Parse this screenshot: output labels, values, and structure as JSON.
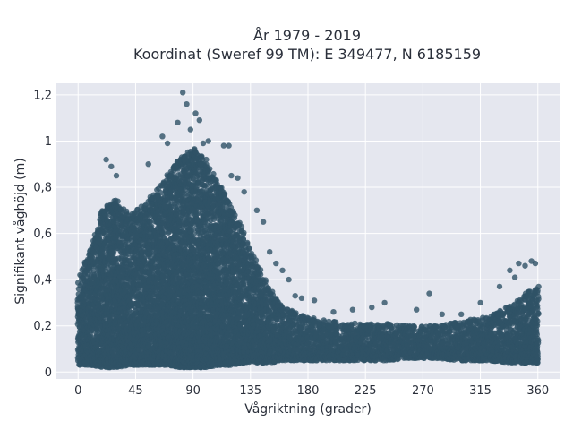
{
  "chart_data": {
    "type": "scatter",
    "title_lines": [
      "År 1979 - 2019",
      "Koordinat (Sweref 99 TM): E 349477, N 6185159"
    ],
    "xlabel": "Vågriktning (grader)",
    "ylabel": "Signifikant våghöjd (m)",
    "xlim": [
      -17,
      377
    ],
    "ylim": [
      -0.03,
      1.25
    ],
    "x_ticks": [
      0,
      45,
      90,
      135,
      180,
      225,
      270,
      315,
      360
    ],
    "x_tick_labels": [
      "0",
      "45",
      "90",
      "135",
      "180",
      "225",
      "270",
      "315",
      "360"
    ],
    "y_ticks": [
      0,
      0.2,
      0.4,
      0.6,
      0.8,
      1.0,
      1.2
    ],
    "y_tick_labels": [
      "0",
      "0,2",
      "0,4",
      "0,6",
      "0,8",
      "1",
      "1,2"
    ],
    "grid": true,
    "colors": {
      "marker": "#2f5266",
      "plot_bg": "#e5e7ef",
      "grid": "#ffffff"
    },
    "envelope": {
      "x": [
        0,
        10,
        20,
        30,
        40,
        50,
        60,
        70,
        80,
        90,
        100,
        110,
        120,
        130,
        140,
        150,
        160,
        170,
        180,
        200,
        220,
        240,
        260,
        280,
        300,
        320,
        340,
        350,
        360
      ],
      "lower": [
        0.03,
        0.03,
        0.02,
        0.02,
        0.03,
        0.03,
        0.03,
        0.03,
        0.02,
        0.02,
        0.02,
        0.03,
        0.03,
        0.04,
        0.04,
        0.04,
        0.05,
        0.05,
        0.05,
        0.05,
        0.05,
        0.05,
        0.06,
        0.06,
        0.05,
        0.05,
        0.04,
        0.04,
        0.04
      ],
      "upper": [
        0.4,
        0.55,
        0.72,
        0.75,
        0.68,
        0.72,
        0.78,
        0.86,
        0.93,
        0.97,
        0.92,
        0.82,
        0.72,
        0.6,
        0.47,
        0.36,
        0.28,
        0.26,
        0.24,
        0.22,
        0.21,
        0.21,
        0.2,
        0.2,
        0.22,
        0.24,
        0.29,
        0.34,
        0.37
      ]
    },
    "outliers": [
      {
        "x": 82,
        "y": 1.21
      },
      {
        "x": 85,
        "y": 1.16
      },
      {
        "x": 92,
        "y": 1.12
      },
      {
        "x": 95,
        "y": 1.09
      },
      {
        "x": 78,
        "y": 1.08
      },
      {
        "x": 88,
        "y": 1.05
      },
      {
        "x": 66,
        "y": 1.02
      },
      {
        "x": 98,
        "y": 0.99
      },
      {
        "x": 102,
        "y": 1.0
      },
      {
        "x": 114,
        "y": 0.98
      },
      {
        "x": 118,
        "y": 0.98
      },
      {
        "x": 55,
        "y": 0.9
      },
      {
        "x": 22,
        "y": 0.92
      },
      {
        "x": 26,
        "y": 0.89
      },
      {
        "x": 30,
        "y": 0.85
      },
      {
        "x": 70,
        "y": 0.99
      },
      {
        "x": 120,
        "y": 0.85
      },
      {
        "x": 125,
        "y": 0.84
      },
      {
        "x": 130,
        "y": 0.78
      },
      {
        "x": 140,
        "y": 0.7
      },
      {
        "x": 145,
        "y": 0.65
      },
      {
        "x": 150,
        "y": 0.52
      },
      {
        "x": 155,
        "y": 0.47
      },
      {
        "x": 160,
        "y": 0.44
      },
      {
        "x": 165,
        "y": 0.4
      },
      {
        "x": 170,
        "y": 0.33
      },
      {
        "x": 175,
        "y": 0.32
      },
      {
        "x": 185,
        "y": 0.31
      },
      {
        "x": 200,
        "y": 0.26
      },
      {
        "x": 215,
        "y": 0.27
      },
      {
        "x": 230,
        "y": 0.28
      },
      {
        "x": 240,
        "y": 0.3
      },
      {
        "x": 265,
        "y": 0.27
      },
      {
        "x": 275,
        "y": 0.34
      },
      {
        "x": 285,
        "y": 0.25
      },
      {
        "x": 300,
        "y": 0.25
      },
      {
        "x": 315,
        "y": 0.3
      },
      {
        "x": 330,
        "y": 0.37
      },
      {
        "x": 338,
        "y": 0.44
      },
      {
        "x": 345,
        "y": 0.47
      },
      {
        "x": 350,
        "y": 0.46
      },
      {
        "x": 355,
        "y": 0.48
      },
      {
        "x": 358,
        "y": 0.47
      },
      {
        "x": 342,
        "y": 0.41
      }
    ]
  }
}
